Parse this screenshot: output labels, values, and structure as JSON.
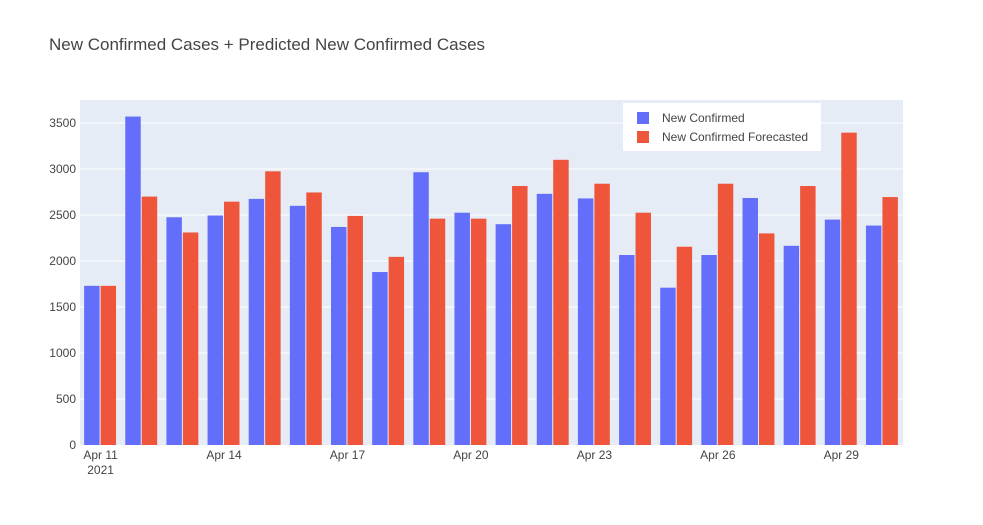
{
  "chart_data": {
    "type": "bar",
    "title": "New Confirmed Cases + Predicted New Confirmed Cases",
    "xlabel": "",
    "ylabel": "",
    "ylim": [
      0,
      3750
    ],
    "y_ticks": [
      0,
      500,
      1000,
      1500,
      2000,
      2500,
      3000,
      3500
    ],
    "x_tick_labels": [
      {
        "index": 0,
        "label": "Apr 11",
        "sublabel": "2021"
      },
      {
        "index": 3,
        "label": "Apr 14",
        "sublabel": ""
      },
      {
        "index": 6,
        "label": "Apr 17",
        "sublabel": ""
      },
      {
        "index": 9,
        "label": "Apr 20",
        "sublabel": ""
      },
      {
        "index": 12,
        "label": "Apr 23",
        "sublabel": ""
      },
      {
        "index": 15,
        "label": "Apr 26",
        "sublabel": ""
      },
      {
        "index": 18,
        "label": "Apr 29",
        "sublabel": ""
      }
    ],
    "categories": [
      "2021-04-11",
      "2021-04-12",
      "2021-04-13",
      "2021-04-14",
      "2021-04-15",
      "2021-04-16",
      "2021-04-17",
      "2021-04-18",
      "2021-04-19",
      "2021-04-20",
      "2021-04-21",
      "2021-04-22",
      "2021-04-23",
      "2021-04-24",
      "2021-04-25",
      "2021-04-26",
      "2021-04-27",
      "2021-04-28",
      "2021-04-29",
      "2021-04-30"
    ],
    "series": [
      {
        "name": "New Confirmed",
        "color": "#636efa",
        "values": [
          1730,
          3570,
          2475,
          2495,
          2675,
          2600,
          2370,
          1880,
          2965,
          2525,
          2400,
          2730,
          2680,
          2065,
          1710,
          2065,
          2685,
          2165,
          2450,
          2385
        ]
      },
      {
        "name": "New Confirmed Forecasted",
        "color": "#ef553b",
        "values": [
          1730,
          2700,
          2310,
          2645,
          2975,
          2745,
          2490,
          2045,
          2460,
          2460,
          2815,
          3100,
          2840,
          2525,
          2155,
          2840,
          2300,
          2815,
          3395,
          2695
        ]
      }
    ],
    "grid": true,
    "legend_position": "top-right",
    "plot_bg": "#e5ecf6"
  }
}
